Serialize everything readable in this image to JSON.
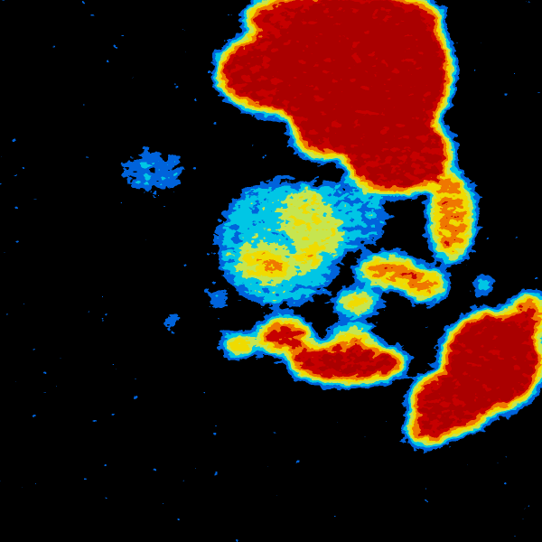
{
  "image": {
    "type": "weather radar reflectivity",
    "background": "#000000",
    "palette": [
      "#000000",
      "#0064dc",
      "#00c8e6",
      "#c8e650",
      "#f0dc00",
      "#f07800",
      "#c80000",
      "#aa0000"
    ]
  }
}
